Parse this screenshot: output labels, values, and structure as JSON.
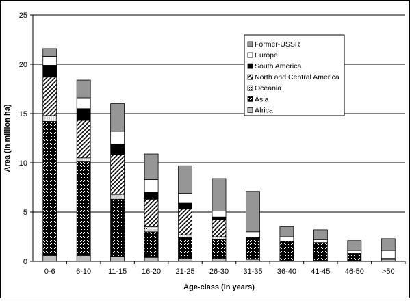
{
  "chart_data": {
    "type": "bar",
    "stacked": true,
    "xlabel": "Age-class (in years)",
    "ylabel": "Area (in million ha)",
    "ylim": [
      0,
      25
    ],
    "yticks": [
      0,
      5,
      10,
      15,
      20,
      25
    ],
    "grid": "horizontal",
    "legend_position": "top-right",
    "categories": [
      "0-6",
      "6-10",
      "11-15",
      "16-20",
      "21-25",
      "26-30",
      "31-35",
      "36-40",
      "41-45",
      "46-50",
      ">50"
    ],
    "series": [
      {
        "name": "Africa",
        "pattern": "light-gray",
        "values": [
          0.6,
          0.6,
          0.5,
          0.4,
          0.3,
          0.3,
          0.2,
          0.1,
          0.1,
          0.1,
          0.2
        ]
      },
      {
        "name": "Asia",
        "pattern": "dark-dotted",
        "values": [
          13.6,
          9.5,
          5.8,
          2.6,
          2.1,
          1.9,
          2.2,
          1.9,
          1.8,
          0.7,
          0.1
        ]
      },
      {
        "name": "Oceania",
        "pattern": "light-dotted",
        "values": [
          0.6,
          0.4,
          0.5,
          0.5,
          0.3,
          0.3,
          0.0,
          0.0,
          0.0,
          0.0,
          0.0
        ]
      },
      {
        "name": "North and Central America",
        "pattern": "diagonal-hatch",
        "values": [
          3.9,
          3.8,
          4.0,
          2.8,
          2.6,
          1.7,
          0.0,
          0.0,
          0.0,
          0.0,
          0.0
        ]
      },
      {
        "name": "South America",
        "pattern": "black",
        "values": [
          1.2,
          1.2,
          1.1,
          0.7,
          0.6,
          0.3,
          0.0,
          0.0,
          0.0,
          0.0,
          0.0
        ]
      },
      {
        "name": "Europe",
        "pattern": "white",
        "values": [
          0.9,
          1.1,
          1.3,
          1.3,
          1.0,
          0.6,
          0.6,
          0.5,
          0.3,
          0.3,
          0.8
        ]
      },
      {
        "name": "Former-USSR",
        "pattern": "gray",
        "values": [
          0.8,
          1.8,
          2.8,
          2.6,
          2.8,
          3.3,
          4.1,
          1.0,
          1.0,
          1.0,
          1.2
        ]
      }
    ]
  }
}
